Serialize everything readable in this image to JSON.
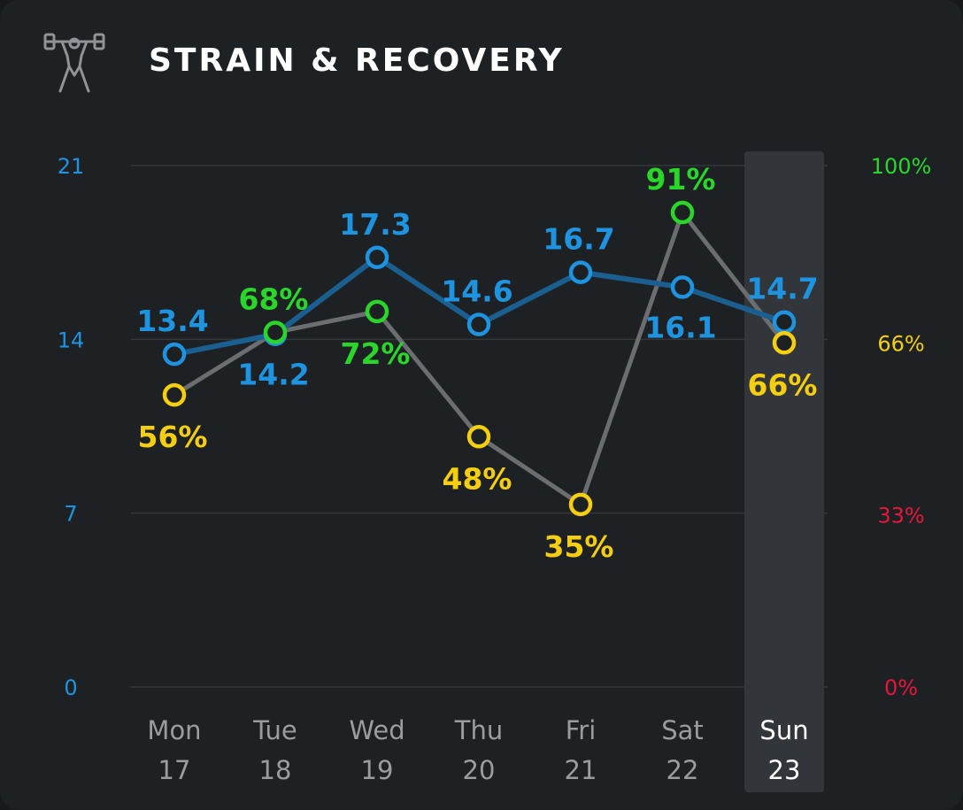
{
  "header": {
    "title": "STRAIN & RECOVERY",
    "icon": "weightlifter-icon"
  },
  "colors": {
    "strain": "#1e94e0",
    "recovery_line": "#6b6d70",
    "recovery_green": "#2ad629",
    "recovery_yellow": "#f5cf0f",
    "recovery_red": "#e5173a",
    "grid": "#33363a",
    "day_label": "#9a9da0",
    "day_label_selected": "#ffffff",
    "highlight": "#3a3d41"
  },
  "chart_data": {
    "type": "line",
    "categories": [
      {
        "day": "Mon",
        "date": "17"
      },
      {
        "day": "Tue",
        "date": "18"
      },
      {
        "day": "Wed",
        "date": "19"
      },
      {
        "day": "Thu",
        "date": "20"
      },
      {
        "day": "Fri",
        "date": "21"
      },
      {
        "day": "Sat",
        "date": "22"
      },
      {
        "day": "Sun",
        "date": "23"
      }
    ],
    "selected_index": 6,
    "left_axis": {
      "min": 0,
      "max": 21,
      "ticks": [
        {
          "v": 0,
          "label": "0"
        },
        {
          "v": 7,
          "label": "7"
        },
        {
          "v": 14,
          "label": "14"
        },
        {
          "v": 21,
          "label": "21"
        }
      ]
    },
    "right_axis": {
      "min": 0,
      "max": 100,
      "ticks": [
        {
          "v": 0,
          "label": "0%",
          "color": "#e5173a"
        },
        {
          "v": 33,
          "label": "33%",
          "color": "#e5173a"
        },
        {
          "v": 66,
          "label": "66%",
          "color": "#f5cf0f"
        },
        {
          "v": 100,
          "label": "100%",
          "color": "#2ad629"
        }
      ]
    },
    "series": [
      {
        "key": "strain",
        "axis": "left",
        "values": [
          13.4,
          14.2,
          17.3,
          14.6,
          16.7,
          16.1,
          14.7
        ],
        "labels": [
          "13.4",
          "14.2",
          "17.3",
          "14.6",
          "16.7",
          "16.1",
          "14.7"
        ],
        "label_pos": [
          "above",
          "below",
          "above",
          "above",
          "above",
          "below",
          "above"
        ]
      },
      {
        "key": "recovery",
        "axis": "right",
        "values": [
          56,
          68,
          72,
          48,
          35,
          91,
          66
        ],
        "labels": [
          "56%",
          "68%",
          "72%",
          "48%",
          "35%",
          "91%",
          "66%"
        ],
        "label_pos": [
          "below",
          "above",
          "below",
          "below",
          "below",
          "above",
          "below"
        ]
      }
    ]
  }
}
